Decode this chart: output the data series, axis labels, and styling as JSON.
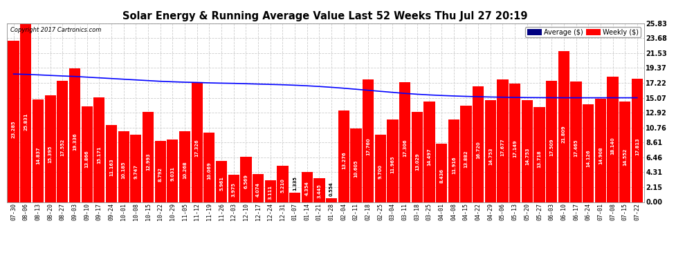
{
  "title": "Solar Energy & Running Average Value Last 52 Weeks Thu Jul 27 20:19",
  "copyright": "Copyright 2017 Cartronics.com",
  "bar_color": "#FF0000",
  "avg_line_color": "#0000FF",
  "background_color": "#FFFFFF",
  "grid_color": "#CCCCCC",
  "ylim_max": 25.83,
  "yticks": [
    0.0,
    2.15,
    4.31,
    6.46,
    8.61,
    10.76,
    12.92,
    15.07,
    17.22,
    19.37,
    21.53,
    23.68,
    25.83
  ],
  "categories": [
    "07-30",
    "08-06",
    "08-13",
    "08-20",
    "08-27",
    "09-03",
    "09-10",
    "09-17",
    "09-24",
    "10-01",
    "10-08",
    "10-15",
    "10-22",
    "10-29",
    "11-05",
    "11-12",
    "11-19",
    "11-26",
    "12-03",
    "12-10",
    "12-17",
    "12-24",
    "12-31",
    "01-07",
    "01-14",
    "01-21",
    "01-28",
    "02-04",
    "02-11",
    "02-18",
    "02-25",
    "03-04",
    "03-11",
    "03-18",
    "03-25",
    "04-01",
    "04-08",
    "04-15",
    "04-22",
    "04-29",
    "05-06",
    "05-13",
    "05-20",
    "05-27",
    "06-03",
    "06-10",
    "06-17",
    "06-24",
    "07-01",
    "07-08",
    "07-15",
    "07-22"
  ],
  "values": [
    23.285,
    25.831,
    14.837,
    15.395,
    17.552,
    19.336,
    13.866,
    15.171,
    11.163,
    10.185,
    9.747,
    12.993,
    8.792,
    9.031,
    10.268,
    17.326,
    10.069,
    5.961,
    3.975,
    6.569,
    4.074,
    3.111,
    5.21,
    1.335,
    4.354,
    3.445,
    0.554,
    13.276,
    10.605,
    17.76,
    9.7,
    11.965,
    17.306,
    13.029,
    14.497,
    8.436,
    11.916,
    13.882,
    16.72,
    14.753,
    17.677,
    17.149,
    14.753,
    13.718,
    17.509,
    21.809,
    17.465,
    14.126,
    14.908,
    18.14,
    14.552,
    17.813
  ],
  "avg_values": [
    18.5,
    18.45,
    18.38,
    18.3,
    18.22,
    18.15,
    18.05,
    17.95,
    17.85,
    17.75,
    17.65,
    17.55,
    17.45,
    17.38,
    17.32,
    17.28,
    17.22,
    17.18,
    17.15,
    17.1,
    17.05,
    17.0,
    16.95,
    16.88,
    16.8,
    16.7,
    16.58,
    16.45,
    16.3,
    16.15,
    16.0,
    15.85,
    15.7,
    15.58,
    15.48,
    15.4,
    15.33,
    15.27,
    15.22,
    15.18,
    15.15,
    15.12,
    15.1,
    15.09,
    15.08,
    15.07,
    15.07,
    15.07,
    15.07,
    15.07,
    15.07,
    15.07
  ],
  "legend_avg_label": "Average ($)",
  "legend_weekly_label": "Weekly ($)"
}
